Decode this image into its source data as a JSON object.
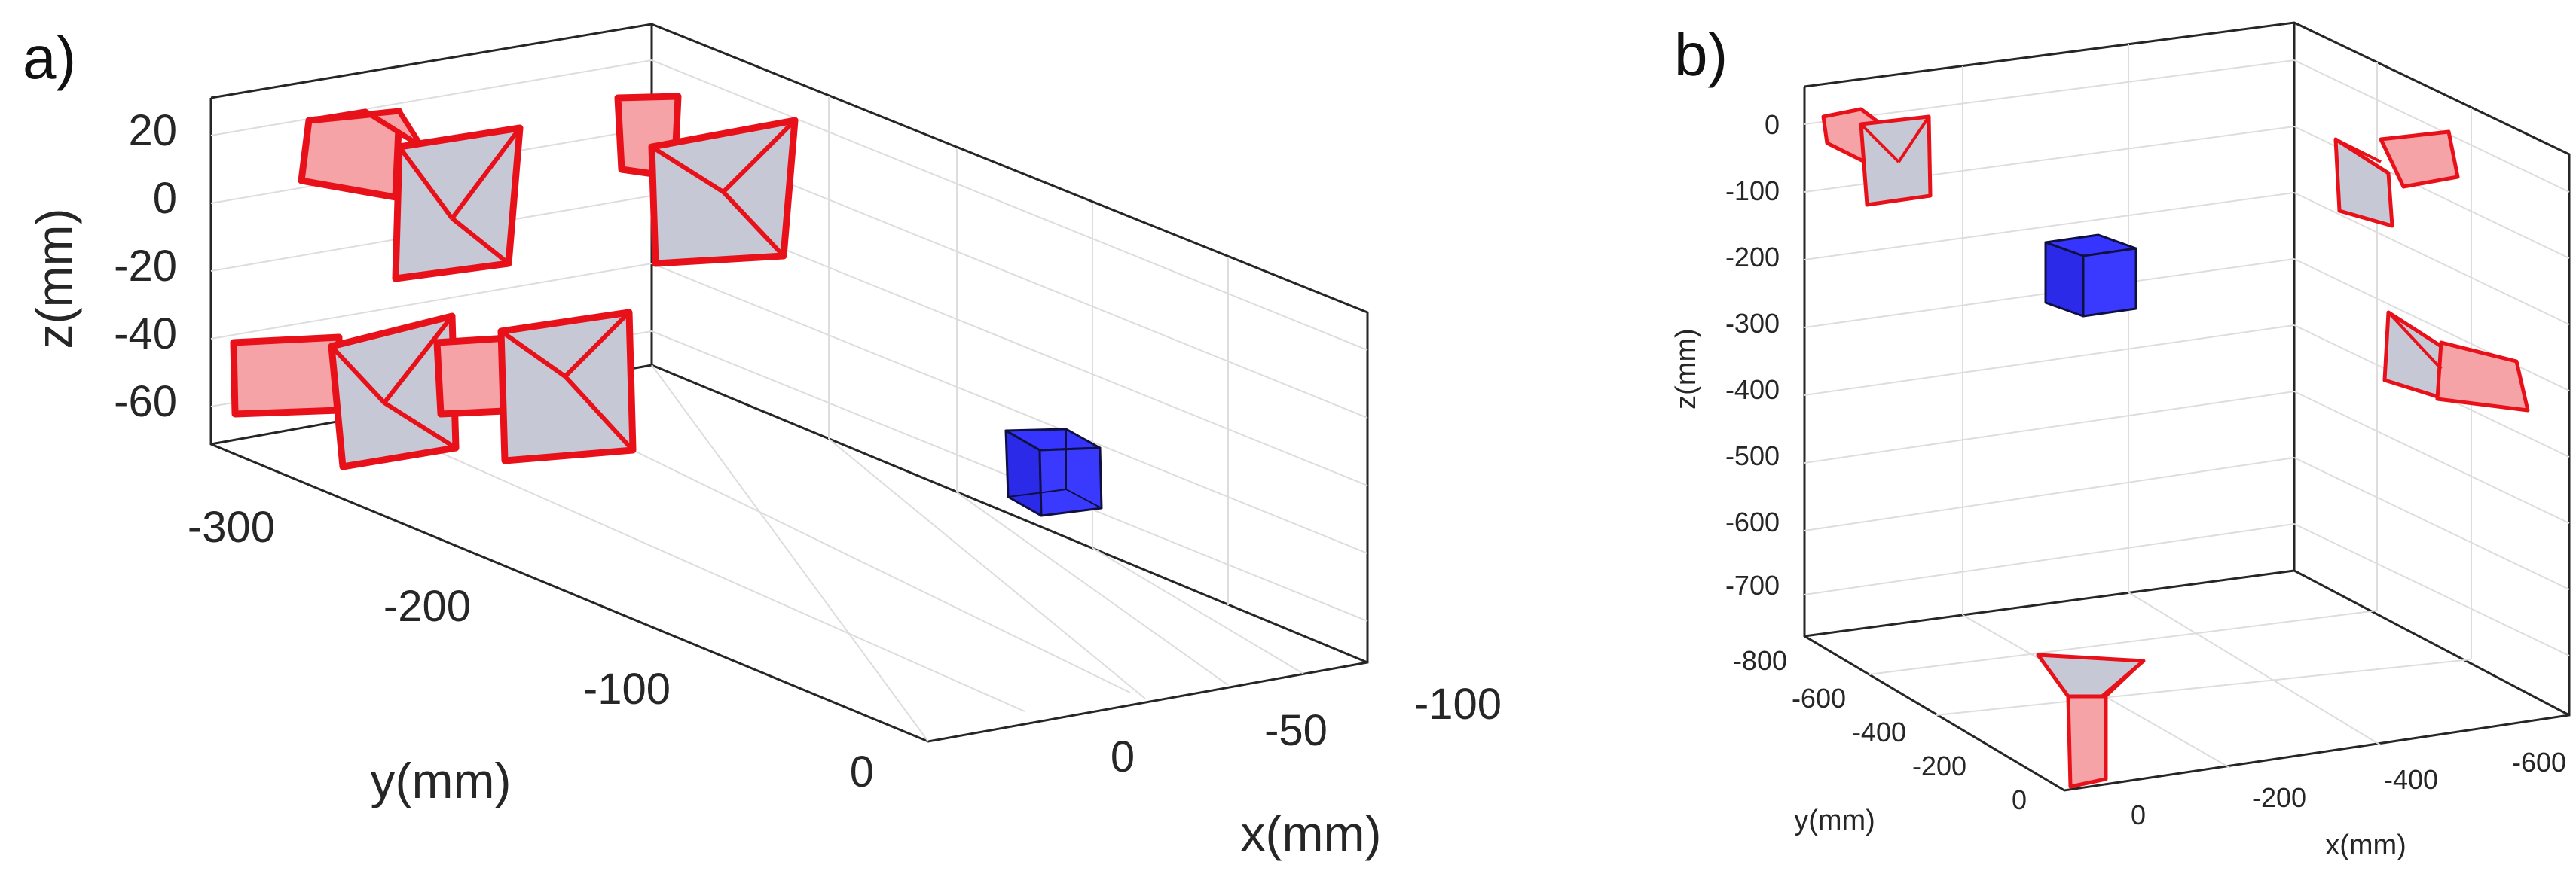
{
  "chart_data": [
    {
      "type": "3d-scatter",
      "panel_label": "a)",
      "xlabel": "x(mm)",
      "ylabel": "y(mm)",
      "zlabel": "z(mm)",
      "x_ticks": [
        "0",
        "-50",
        "-100"
      ],
      "y_ticks": [
        "-300",
        "-200",
        "-100",
        "0"
      ],
      "z_ticks": [
        "20",
        "0",
        "-20",
        "-40",
        "-60"
      ],
      "grid": true,
      "series": [
        {
          "role": "cameras",
          "color": "#e41a1c",
          "items": [
            {
              "y": -290,
              "z": 10,
              "x": 20
            },
            {
              "y": -230,
              "z": 15,
              "x": 20
            },
            {
              "y": -290,
              "z": -45,
              "x": 20
            },
            {
              "y": -230,
              "z": -45,
              "x": 20
            }
          ]
        },
        {
          "role": "target",
          "color": "#0000ff",
          "items": [
            {
              "x": -50,
              "y": -30,
              "z": -60
            }
          ]
        }
      ]
    },
    {
      "type": "3d-scatter",
      "panel_label": "b)",
      "xlabel": "x(mm)",
      "ylabel": "y(mm)",
      "zlabel": "z(mm)",
      "x_ticks": [
        "0",
        "-200",
        "-400",
        "-600"
      ],
      "y_ticks": [
        "-800",
        "-600",
        "-400",
        "-200",
        "0"
      ],
      "z_ticks": [
        "0",
        "-100",
        "-200",
        "-300",
        "-400",
        "-500",
        "-600",
        "-700"
      ],
      "grid": true,
      "series": [
        {
          "role": "cameras",
          "color": "#e41a1c",
          "count": 4
        },
        {
          "role": "target",
          "color": "#0000ff",
          "count": 1
        }
      ]
    }
  ]
}
